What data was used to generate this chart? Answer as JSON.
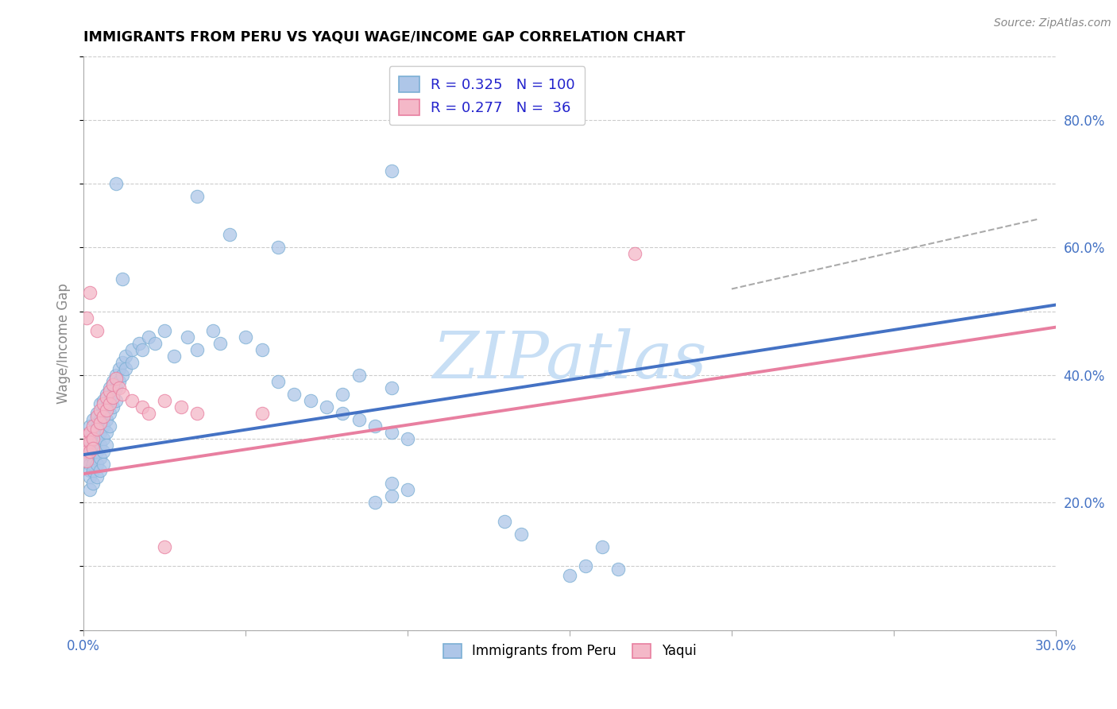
{
  "title": "IMMIGRANTS FROM PERU VS YAQUI WAGE/INCOME GAP CORRELATION CHART",
  "source": "Source: ZipAtlas.com",
  "ylabel": "Wage/Income Gap",
  "xlim": [
    0.0,
    0.3
  ],
  "ylim": [
    0.0,
    0.9
  ],
  "watermark": "ZIPatlas",
  "watermark_color": "#c8dff5",
  "blue_line": {
    "x0": 0.0,
    "y0": 0.275,
    "x1": 0.3,
    "y1": 0.51
  },
  "pink_line": {
    "x0": 0.0,
    "y0": 0.245,
    "x1": 0.3,
    "y1": 0.475
  },
  "dashed_line": {
    "x0": 0.2,
    "y0": 0.535,
    "x1": 0.295,
    "y1": 0.645
  },
  "blue_scatter": [
    [
      0.001,
      0.305
    ],
    [
      0.001,
      0.29
    ],
    [
      0.001,
      0.27
    ],
    [
      0.001,
      0.265
    ],
    [
      0.002,
      0.32
    ],
    [
      0.002,
      0.3
    ],
    [
      0.002,
      0.28
    ],
    [
      0.002,
      0.26
    ],
    [
      0.002,
      0.25
    ],
    [
      0.002,
      0.24
    ],
    [
      0.002,
      0.22
    ],
    [
      0.003,
      0.33
    ],
    [
      0.003,
      0.31
    ],
    [
      0.003,
      0.29
    ],
    [
      0.003,
      0.27
    ],
    [
      0.003,
      0.26
    ],
    [
      0.003,
      0.25
    ],
    [
      0.003,
      0.23
    ],
    [
      0.004,
      0.34
    ],
    [
      0.004,
      0.32
    ],
    [
      0.004,
      0.3
    ],
    [
      0.004,
      0.28
    ],
    [
      0.004,
      0.26
    ],
    [
      0.004,
      0.24
    ],
    [
      0.005,
      0.355
    ],
    [
      0.005,
      0.33
    ],
    [
      0.005,
      0.31
    ],
    [
      0.005,
      0.29
    ],
    [
      0.005,
      0.27
    ],
    [
      0.005,
      0.25
    ],
    [
      0.006,
      0.36
    ],
    [
      0.006,
      0.34
    ],
    [
      0.006,
      0.32
    ],
    [
      0.006,
      0.3
    ],
    [
      0.006,
      0.28
    ],
    [
      0.006,
      0.26
    ],
    [
      0.007,
      0.37
    ],
    [
      0.007,
      0.35
    ],
    [
      0.007,
      0.33
    ],
    [
      0.007,
      0.31
    ],
    [
      0.007,
      0.29
    ],
    [
      0.008,
      0.38
    ],
    [
      0.008,
      0.36
    ],
    [
      0.008,
      0.34
    ],
    [
      0.008,
      0.32
    ],
    [
      0.009,
      0.39
    ],
    [
      0.009,
      0.37
    ],
    [
      0.009,
      0.35
    ],
    [
      0.01,
      0.4
    ],
    [
      0.01,
      0.38
    ],
    [
      0.01,
      0.36
    ],
    [
      0.011,
      0.41
    ],
    [
      0.011,
      0.39
    ],
    [
      0.012,
      0.42
    ],
    [
      0.012,
      0.4
    ],
    [
      0.013,
      0.43
    ],
    [
      0.013,
      0.41
    ],
    [
      0.015,
      0.44
    ],
    [
      0.015,
      0.42
    ],
    [
      0.017,
      0.45
    ],
    [
      0.018,
      0.44
    ],
    [
      0.02,
      0.46
    ],
    [
      0.022,
      0.45
    ],
    [
      0.025,
      0.47
    ],
    [
      0.028,
      0.43
    ],
    [
      0.032,
      0.46
    ],
    [
      0.035,
      0.44
    ],
    [
      0.04,
      0.47
    ],
    [
      0.042,
      0.45
    ],
    [
      0.05,
      0.46
    ],
    [
      0.055,
      0.44
    ],
    [
      0.06,
      0.39
    ],
    [
      0.065,
      0.37
    ],
    [
      0.07,
      0.36
    ],
    [
      0.075,
      0.35
    ],
    [
      0.08,
      0.34
    ],
    [
      0.085,
      0.33
    ],
    [
      0.09,
      0.32
    ],
    [
      0.095,
      0.31
    ],
    [
      0.1,
      0.3
    ],
    [
      0.01,
      0.7
    ],
    [
      0.035,
      0.68
    ],
    [
      0.095,
      0.72
    ],
    [
      0.06,
      0.6
    ],
    [
      0.045,
      0.62
    ],
    [
      0.085,
      0.4
    ],
    [
      0.08,
      0.37
    ],
    [
      0.095,
      0.38
    ],
    [
      0.012,
      0.55
    ],
    [
      0.15,
      0.085
    ],
    [
      0.155,
      0.1
    ],
    [
      0.16,
      0.13
    ],
    [
      0.165,
      0.095
    ],
    [
      0.13,
      0.17
    ],
    [
      0.135,
      0.15
    ],
    [
      0.09,
      0.2
    ],
    [
      0.095,
      0.21
    ],
    [
      0.095,
      0.23
    ],
    [
      0.1,
      0.22
    ]
  ],
  "pink_scatter": [
    [
      0.001,
      0.305
    ],
    [
      0.001,
      0.295
    ],
    [
      0.001,
      0.28
    ],
    [
      0.001,
      0.265
    ],
    [
      0.002,
      0.31
    ],
    [
      0.002,
      0.295
    ],
    [
      0.002,
      0.28
    ],
    [
      0.003,
      0.32
    ],
    [
      0.003,
      0.3
    ],
    [
      0.003,
      0.285
    ],
    [
      0.004,
      0.335
    ],
    [
      0.004,
      0.315
    ],
    [
      0.005,
      0.345
    ],
    [
      0.005,
      0.325
    ],
    [
      0.006,
      0.355
    ],
    [
      0.006,
      0.335
    ],
    [
      0.007,
      0.365
    ],
    [
      0.007,
      0.345
    ],
    [
      0.008,
      0.375
    ],
    [
      0.008,
      0.355
    ],
    [
      0.009,
      0.385
    ],
    [
      0.009,
      0.365
    ],
    [
      0.01,
      0.395
    ],
    [
      0.011,
      0.38
    ],
    [
      0.012,
      0.37
    ],
    [
      0.015,
      0.36
    ],
    [
      0.018,
      0.35
    ],
    [
      0.02,
      0.34
    ],
    [
      0.025,
      0.36
    ],
    [
      0.03,
      0.35
    ],
    [
      0.035,
      0.34
    ],
    [
      0.001,
      0.49
    ],
    [
      0.002,
      0.53
    ],
    [
      0.004,
      0.47
    ],
    [
      0.17,
      0.59
    ],
    [
      0.055,
      0.34
    ],
    [
      0.025,
      0.13
    ]
  ],
  "blue_line_color": "#4472c4",
  "pink_line_color": "#e87fa0",
  "dashed_line_color": "#aaaaaa",
  "background_color": "#ffffff",
  "grid_color": "#cccccc"
}
